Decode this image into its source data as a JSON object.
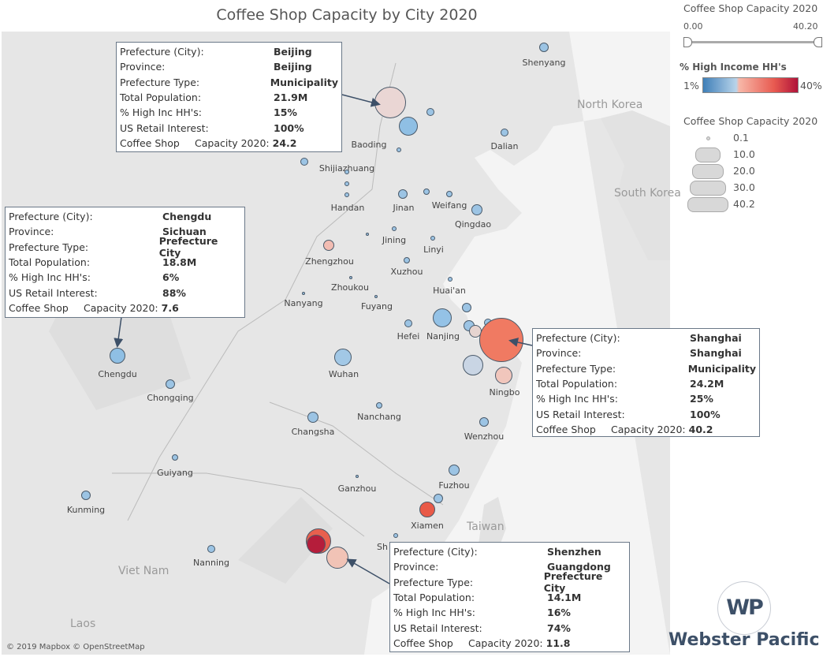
{
  "title": "Coffee Shop Capacity by City 2020",
  "map": {
    "attribution": "© 2019 Mapbox © OpenStreetMap",
    "countries": [
      "North Korea",
      "South Korea",
      "Taiwan",
      "Viet Nam",
      "Laos"
    ],
    "city_labels": [
      "Shenyang",
      "Dalian",
      "Baoding",
      "Shijiazhuang",
      "Handan",
      "Jinan",
      "Weifang",
      "Qingdao",
      "Jining",
      "Linyi",
      "Zhengzhou",
      "Xuzhou",
      "Zhoukou",
      "Nanyang",
      "Fuyang",
      "Huai'an",
      "Hefei",
      "Nanjing",
      "Chengdu",
      "Wuhan",
      "Ningbo",
      "Chongqing",
      "Nanchang",
      "Changsha",
      "Wenzhou",
      "Guiyang",
      "Fuzhou",
      "Ganzhou",
      "Kunming",
      "Xiamen",
      "Nanning",
      "Sh"
    ]
  },
  "tooltips": [
    {
      "city": "Beijing",
      "province": "Beijing",
      "type": "Municipality",
      "population": "21.9M",
      "high_inc": "15%",
      "retail_interest": "100%",
      "capacity": "24.2"
    },
    {
      "city": "Chengdu",
      "province": "Sichuan",
      "type": "Prefecture City",
      "population": "18.8M",
      "high_inc": "6%",
      "retail_interest": "88%",
      "capacity": "7.6"
    },
    {
      "city": "Shanghai",
      "province": "Shanghai",
      "type": "Municipality",
      "population": "24.2M",
      "high_inc": "25%",
      "retail_interest": "100%",
      "capacity": "40.2"
    },
    {
      "city": "Shenzhen",
      "province": "Guangdong",
      "type": "Prefecture City",
      "population": "14.1M",
      "high_inc": "16%",
      "retail_interest": "74%",
      "capacity": "11.8"
    }
  ],
  "tooltip_labels": {
    "city": "Prefecture (City):",
    "province": "Province:",
    "type": "Prefecture Type:",
    "population": "Total Population:",
    "high_inc": "% High Inc HH's:",
    "retail_interest": "US Retail Interest:",
    "cap1": "Coffee Shop",
    "cap2": "Capacity 2020:"
  },
  "legend": {
    "filter_title": "Coffee Shop Capacity 2020",
    "filter_min": "0.00",
    "filter_max": "40.20",
    "color_title": "% High Income HH's",
    "color_min": "1%",
    "color_max": "40%",
    "color_low": "#3f7fb8",
    "color_high": "#b0133a",
    "size_title": "Coffee Shop Capacity 2020",
    "sizes": [
      "0.1",
      "10.0",
      "20.0",
      "30.0",
      "40.2"
    ]
  },
  "brand": {
    "logo": "WP",
    "name": "Webster Pacific"
  }
}
